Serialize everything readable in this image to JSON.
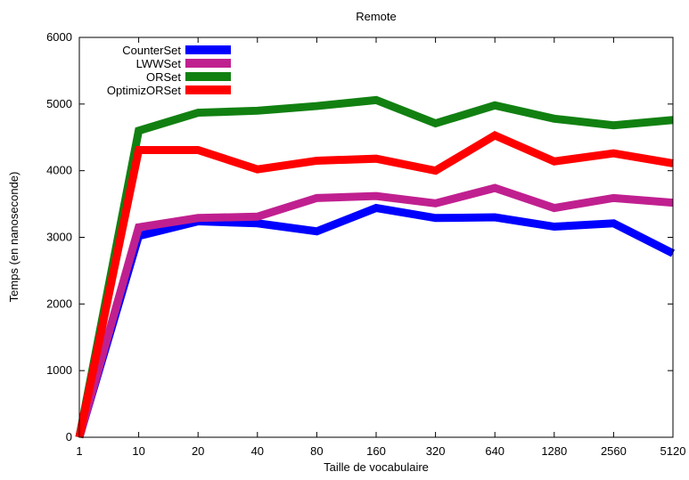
{
  "chart_data": {
    "type": "line",
    "title": "Remote",
    "xlabel": "Taille de vocabulaire",
    "ylabel": "Temps (en nanoseconde)",
    "categories": [
      "1",
      "10",
      "20",
      "40",
      "80",
      "160",
      "320",
      "640",
      "1280",
      "2560",
      "5120"
    ],
    "ylim": [
      0,
      6000
    ],
    "yticks": [
      0,
      1000,
      2000,
      3000,
      4000,
      5000,
      6000
    ],
    "grid": false,
    "legend_position": "top-left",
    "series": [
      {
        "name": "CounterSet",
        "color": "#0000ff",
        "values": [
          0,
          3020,
          3240,
          3210,
          3090,
          3440,
          3290,
          3300,
          3160,
          3210,
          2760
        ]
      },
      {
        "name": "LWWSet",
        "color": "#c0208f",
        "values": [
          0,
          3150,
          3290,
          3310,
          3590,
          3620,
          3510,
          3740,
          3440,
          3590,
          3520
        ]
      },
      {
        "name": "ORSet",
        "color": "#118011",
        "values": [
          0,
          4600,
          4870,
          4900,
          4970,
          5060,
          4710,
          4980,
          4780,
          4680,
          4760
        ]
      },
      {
        "name": "OptimizORSet",
        "color": "#ff0000",
        "values": [
          0,
          4310,
          4310,
          4020,
          4150,
          4180,
          4000,
          4530,
          4140,
          4260,
          4110
        ]
      }
    ]
  }
}
